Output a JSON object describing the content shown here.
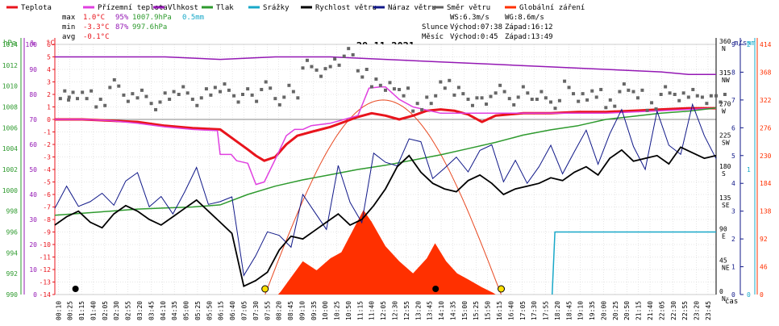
{
  "legend": [
    {
      "label": "Teplota",
      "color": "#e8141c"
    },
    {
      "label": "Přízemní teplota",
      "color": "#e040e0"
    },
    {
      "label": "Vlhkost",
      "color": "#9418b4"
    },
    {
      "label": "Tlak",
      "color": "#2e9a2e"
    },
    {
      "label": "Srážky",
      "color": "#18a8c8"
    },
    {
      "label": "Rychlost větru",
      "color": "#000000"
    },
    {
      "label": "Náraz větru",
      "color": "#101888"
    },
    {
      "label": "Směr větru",
      "color": "#606060"
    },
    {
      "label": "Globální záření",
      "color": "#ff3000"
    }
  ],
  "stats": {
    "max_label": "max",
    "max_temp": "1.0°C",
    "max_hum": "95%",
    "max_press": "1007.9hPa",
    "max_rain": "0.5mm",
    "min_label": "min",
    "min_temp": "-3.3°C",
    "min_hum": "87%",
    "min_press": "997.6hPa",
    "avg_label": "avg",
    "avg_temp": "-0.1°C"
  },
  "wind_info": {
    "ws": "WS:6.3m/s",
    "wg": "WG:8.6m/s"
  },
  "sun_info": {
    "label": "Slunce",
    "rise": "Východ:07:38",
    "set": "Západ:16:12"
  },
  "moon_info": {
    "label": "Měsíc",
    "rise": "Východ:0:45",
    "set": "Západ:13:49"
  },
  "chart_data": {
    "type": "line",
    "title": "29.11.2021",
    "xlabel": "čas",
    "axes": {
      "pressure": {
        "unit": "hPa",
        "min": 990,
        "max": 1014,
        "ticks": [
          "990",
          "992",
          "994",
          "996",
          "998",
          "1000",
          "1002",
          "1004",
          "1006",
          "1008",
          "1010",
          "1012",
          "1014"
        ]
      },
      "humidity": {
        "unit": "%",
        "min": 0,
        "max": 100,
        "ticks": [
          "0",
          "10",
          "20",
          "30",
          "40",
          "50",
          "60",
          "70",
          "80",
          "90",
          "100"
        ]
      },
      "temperature": {
        "unit": "°C",
        "min": -14,
        "max": 6,
        "ticks": [
          "-14",
          "-13",
          "-12",
          "-11",
          "-10",
          "-9",
          "-8",
          "-7",
          "-6",
          "-5",
          "-4",
          "-3",
          "-2",
          "-1",
          "0",
          "1",
          "2",
          "3",
          "4",
          "5",
          "6"
        ]
      },
      "wind_dir": {
        "ticks": [
          {
            "v": 0,
            "d": "0",
            "s": "N"
          },
          {
            "v": 45,
            "d": "45",
            "s": "NE"
          },
          {
            "v": 90,
            "d": "90",
            "s": "E"
          },
          {
            "v": 135,
            "d": "135",
            "s": "SE"
          },
          {
            "v": 180,
            "d": "180",
            "s": "S"
          },
          {
            "v": 225,
            "d": "225",
            "s": "SW"
          },
          {
            "v": 270,
            "d": "270",
            "s": "W"
          },
          {
            "v": 315,
            "d": "315",
            "s": "NW"
          },
          {
            "v": 360,
            "d": "360",
            "s": "N"
          }
        ]
      },
      "wind_speed": {
        "unit": "m/s",
        "min": 0,
        "max": 9,
        "ticks": [
          "0",
          "1",
          "2",
          "3",
          "4",
          "5",
          "6",
          "7",
          "8",
          "9"
        ]
      },
      "rain": {
        "unit": "mm",
        "min": 0,
        "max": 2,
        "ticks": [
          "0",
          "1",
          "2"
        ]
      },
      "radiation": {
        "min": 0,
        "max": 414,
        "ticks": [
          "0",
          "46",
          "92",
          "138",
          "184",
          "230",
          "276",
          "322",
          "368",
          "414"
        ]
      }
    },
    "x_ticks": [
      "00:10",
      "00:25",
      "01:15",
      "01:40",
      "02:05",
      "02:30",
      "02:55",
      "03:20",
      "03:45",
      "04:10",
      "04:35",
      "05:00",
      "05:25",
      "05:50",
      "06:15",
      "06:40",
      "07:05",
      "07:30",
      "07:55",
      "08:20",
      "08:45",
      "09:10",
      "09:35",
      "10:00",
      "10:25",
      "10:50",
      "11:15",
      "11:40",
      "12:05",
      "12:30",
      "12:55",
      "13:20",
      "13:45",
      "14:10",
      "14:35",
      "15:00",
      "15:25",
      "15:50",
      "16:15",
      "16:40",
      "17:05",
      "17:30",
      "17:55",
      "18:20",
      "18:45",
      "19:10",
      "19:35",
      "20:00",
      "20:25",
      "20:50",
      "21:15",
      "21:40",
      "22:05",
      "22:30",
      "22:55",
      "23:20",
      "23:45"
    ],
    "series": [
      {
        "name": "Teplota",
        "axis": "temperature",
        "color": "#e8141c",
        "x": [
          0,
          1,
          2,
          3,
          4,
          5,
          6,
          6.5,
          7,
          7.3,
          7.6,
          8,
          8.4,
          8.8,
          9.3,
          10,
          10.5,
          11,
          11.5,
          12,
          12.5,
          13,
          13.5,
          14,
          14.5,
          15,
          15.5,
          16,
          17,
          18,
          19,
          20,
          21,
          22,
          23,
          24
        ],
        "y": [
          0,
          0,
          -0.1,
          -0.2,
          -0.5,
          -0.7,
          -0.8,
          -1.6,
          -2.4,
          -2.9,
          -3.3,
          -3.0,
          -2.0,
          -1.3,
          -1.0,
          -0.6,
          -0.2,
          0.2,
          0.5,
          0.3,
          0.0,
          0.3,
          0.7,
          0.8,
          0.7,
          0.4,
          -0.2,
          0.3,
          0.5,
          0.5,
          0.6,
          0.6,
          0.7,
          0.8,
          0.9,
          0.9
        ]
      },
      {
        "name": "Přízemní teplota",
        "axis": "temperature",
        "color": "#e040e0",
        "x": [
          0,
          1,
          2,
          3,
          4,
          5,
          5.9,
          6,
          6.4,
          6.6,
          7,
          7.3,
          7.6,
          8,
          8.4,
          8.7,
          9,
          9.3,
          10,
          10.5,
          11,
          11.4,
          11.8,
          12,
          12.5,
          13,
          14,
          15,
          16,
          17,
          18,
          19,
          20,
          21,
          22,
          23,
          24
        ],
        "y": [
          0,
          0,
          -0.1,
          -0.3,
          -0.6,
          -0.8,
          -0.9,
          -2.8,
          -2.8,
          -3.3,
          -3.5,
          -5.2,
          -5.0,
          -3.2,
          -1.3,
          -0.8,
          -0.8,
          -0.5,
          -0.3,
          0.0,
          0.3,
          2.5,
          2.6,
          2.6,
          1.6,
          1.0,
          0.5,
          0.5,
          0.5,
          0.5,
          0.5,
          0.5,
          0.5,
          0.6,
          0.7,
          0.8,
          0.9
        ]
      },
      {
        "name": "Vlhkost",
        "axis": "humidity",
        "color": "#9418b4",
        "x": [
          0,
          2,
          4,
          6,
          8,
          10,
          12,
          14,
          16,
          18,
          20,
          22,
          23,
          24
        ],
        "y": [
          95,
          95,
          95,
          94,
          95,
          95,
          94,
          93,
          92,
          91,
          90,
          89,
          88,
          88
        ]
      },
      {
        "name": "Tlak",
        "axis": "pressure",
        "color": "#2e9a2e",
        "x": [
          0,
          1,
          2,
          3,
          4,
          5,
          6,
          7,
          8,
          9,
          10,
          11,
          12,
          13,
          14,
          15,
          16,
          17,
          18,
          19,
          20,
          21,
          22,
          23,
          24
        ],
        "y": [
          997.6,
          997.8,
          998.0,
          998.2,
          998.3,
          998.4,
          998.6,
          999.6,
          1000.4,
          1001.0,
          1001.5,
          1002.0,
          1002.4,
          1002.9,
          1003.4,
          1004.0,
          1004.6,
          1005.3,
          1005.8,
          1006.2,
          1006.8,
          1007.1,
          1007.4,
          1007.6,
          1007.9
        ]
      }
    ],
    "rain_step": {
      "name": "Srážky",
      "axis": "rain",
      "color": "#18a8c8",
      "start_hour": 18.05,
      "value": 0.5
    },
    "wind_speed_pts": [
      2.5,
      2.8,
      3.0,
      2.6,
      2.4,
      2.9,
      3.2,
      3.0,
      2.7,
      2.5,
      2.8,
      3.1,
      3.4,
      3.0,
      2.6,
      2.2,
      0.3,
      0.5,
      0.8,
      1.6,
      2.1,
      2.0,
      2.3,
      2.6,
      2.9,
      2.5,
      2.7,
      3.2,
      3.8,
      4.6,
      5.0,
      4.4,
      4.0,
      3.8,
      3.7,
      4.1,
      4.3,
      4.0,
      3.6,
      3.8,
      3.9,
      4.0,
      4.2,
      4.1,
      4.4,
      4.6,
      4.3,
      4.9,
      5.2,
      4.8,
      4.9,
      5.0,
      4.7,
      5.3,
      5.1,
      4.9,
      5.0
    ],
    "radiation_curve_peak": 322,
    "radiation_actual": [
      {
        "h": 8.2,
        "v": 5
      },
      {
        "h": 8.6,
        "v": 30
      },
      {
        "h": 9.0,
        "v": 55
      },
      {
        "h": 9.5,
        "v": 40
      },
      {
        "h": 10.0,
        "v": 60
      },
      {
        "h": 10.4,
        "v": 70
      },
      {
        "h": 10.8,
        "v": 105
      },
      {
        "h": 11.2,
        "v": 140
      },
      {
        "h": 11.5,
        "v": 120
      },
      {
        "h": 12.0,
        "v": 80
      },
      {
        "h": 12.5,
        "v": 55
      },
      {
        "h": 13.0,
        "v": 35
      },
      {
        "h": 13.5,
        "v": 60
      },
      {
        "h": 13.8,
        "v": 85
      },
      {
        "h": 14.2,
        "v": 55
      },
      {
        "h": 14.6,
        "v": 35
      },
      {
        "h": 15.0,
        "v": 25
      },
      {
        "h": 15.5,
        "v": 12
      },
      {
        "h": 15.9,
        "v": 3
      }
    ],
    "wind_dir_pts": [
      [
        0.2,
        292
      ],
      [
        0.5,
        283
      ],
      [
        1,
        287
      ],
      [
        1.5,
        279
      ],
      [
        2,
        300
      ],
      [
        2.5,
        282
      ],
      [
        3,
        291
      ],
      [
        3.5,
        276
      ],
      [
        4,
        284
      ],
      [
        4.5,
        295
      ],
      [
        5,
        281
      ],
      [
        5.5,
        289
      ],
      [
        6,
        298
      ],
      [
        6.5,
        285
      ],
      [
        7,
        288
      ],
      [
        7.5,
        300
      ],
      [
        8,
        280
      ],
      [
        8.5,
        292
      ],
      [
        9,
        330
      ],
      [
        9.5,
        320
      ],
      [
        10,
        338
      ],
      [
        10.5,
        346
      ],
      [
        11,
        318
      ],
      [
        11.5,
        308
      ],
      [
        12,
        296
      ],
      [
        12.5,
        290
      ],
      [
        13,
        272
      ],
      [
        13.5,
        285
      ],
      [
        14,
        300
      ],
      [
        14.5,
        294
      ],
      [
        15,
        281
      ],
      [
        15.5,
        276
      ],
      [
        16,
        296
      ],
      [
        16.5,
        281
      ],
      [
        17,
        291
      ],
      [
        17.5,
        286
      ],
      [
        18,
        275
      ],
      [
        18.5,
        298
      ],
      [
        19,
        282
      ],
      [
        19.5,
        290
      ],
      [
        20,
        279
      ],
      [
        20.5,
        295
      ],
      [
        21,
        288
      ],
      [
        21.5,
        274
      ],
      [
        22,
        290
      ],
      [
        22.5,
        283
      ],
      [
        23,
        292
      ],
      [
        23.5,
        285
      ],
      [
        24,
        280
      ]
    ]
  }
}
